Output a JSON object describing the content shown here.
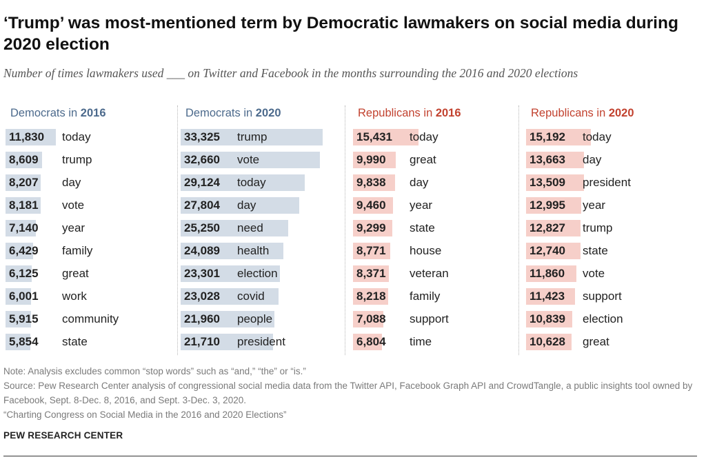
{
  "title": "‘Trump’ was most-mentioned term by Democratic lawmakers on social media during 2020 election",
  "subtitle": "Number of times lawmakers used ___ on Twitter and Facebook in the months surrounding the 2016 and 2020 elections",
  "colors": {
    "dem_text": "#4c6a8c",
    "dem_bar": "#d3dce6",
    "rep_text": "#c2422f",
    "rep_bar": "#f6cfc9"
  },
  "chart_data": {
    "type": "bar",
    "orientation": "horizontal",
    "scale_max": 33325,
    "panels": [
      {
        "party": "Democrats",
        "year": "2016",
        "color": "#d3dce6",
        "terms": [
          "today",
          "trump",
          "day",
          "vote",
          "year",
          "family",
          "great",
          "work",
          "community",
          "state"
        ],
        "values": [
          11830,
          8609,
          8207,
          8181,
          7140,
          6429,
          6125,
          6001,
          5915,
          5854
        ],
        "labels": [
          "11,830",
          "8,609",
          "8,207",
          "8,181",
          "7,140",
          "6,429",
          "6,125",
          "6,001",
          "5,915",
          "5,854"
        ]
      },
      {
        "party": "Democrats",
        "year": "2020",
        "color": "#d3dce6",
        "terms": [
          "trump",
          "vote",
          "today",
          "day",
          "need",
          "health",
          "election",
          "covid",
          "people",
          "president"
        ],
        "values": [
          33325,
          32660,
          29124,
          27804,
          25250,
          24089,
          23301,
          23028,
          21960,
          21710
        ],
        "labels": [
          "33,325",
          "32,660",
          "29,124",
          "27,804",
          "25,250",
          "24,089",
          "23,301",
          "23,028",
          "21,960",
          "21,710"
        ]
      },
      {
        "party": "Republicans",
        "year": "2016",
        "color": "#f6cfc9",
        "terms": [
          "today",
          "great",
          "day",
          "year",
          "state",
          "house",
          "veteran",
          "family",
          "support",
          "time"
        ],
        "values": [
          15431,
          9990,
          9838,
          9460,
          9299,
          8771,
          8371,
          8218,
          7088,
          6804
        ],
        "labels": [
          "15,431",
          "9,990",
          "9,838",
          "9,460",
          "9,299",
          "8,771",
          "8,371",
          "8,218",
          "7,088",
          "6,804"
        ]
      },
      {
        "party": "Republicans",
        "year": "2020",
        "color": "#f6cfc9",
        "terms": [
          "today",
          "day",
          "president",
          "year",
          "trump",
          "state",
          "vote",
          "support",
          "election",
          "great"
        ],
        "values": [
          15192,
          13663,
          13509,
          12995,
          12827,
          12740,
          11860,
          11423,
          10839,
          10628
        ],
        "labels": [
          "15,192",
          "13,663",
          "13,509",
          "12,995",
          "12,827",
          "12,740",
          "11,860",
          "11,423",
          "10,839",
          "10,628"
        ]
      }
    ]
  },
  "notes": {
    "note": "Note: Analysis excludes common “stop words” such as “and,” “the” or “is.”",
    "source": "Source: Pew Research Center analysis of congressional social media data from the Twitter API, Facebook Graph API and CrowdTangle, a public insights tool owned by Facebook, Sept. 8-Dec. 8, 2016, and Sept. 3-Dec. 3, 2020.",
    "report": "“Charting Congress on Social Media in the 2016 and 2020 Elections”"
  },
  "org": "PEW RESEARCH CENTER"
}
